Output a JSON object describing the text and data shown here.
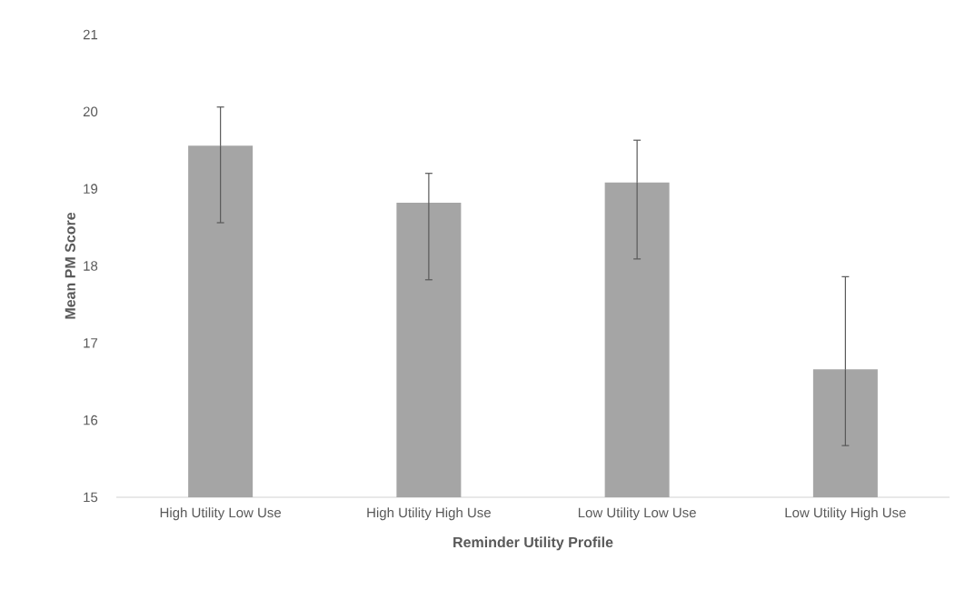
{
  "chart_data": {
    "type": "bar",
    "xlabel": "Reminder Utility Profile",
    "ylabel": "Mean PM Score",
    "categories": [
      "High Utility Low Use",
      "High Utility High Use",
      "Low Utility Low Use",
      "Low Utility High Use"
    ],
    "values": [
      19.56,
      18.82,
      19.08,
      16.66
    ],
    "errors": [
      [
        18.56,
        20.06
      ],
      [
        17.82,
        19.2
      ],
      [
        18.09,
        19.63
      ],
      [
        15.67,
        17.86
      ]
    ],
    "color": "#a5a5a5",
    "ylim": [
      15,
      21
    ],
    "yticks": [
      15,
      16,
      17,
      18,
      19,
      20,
      21
    ]
  }
}
